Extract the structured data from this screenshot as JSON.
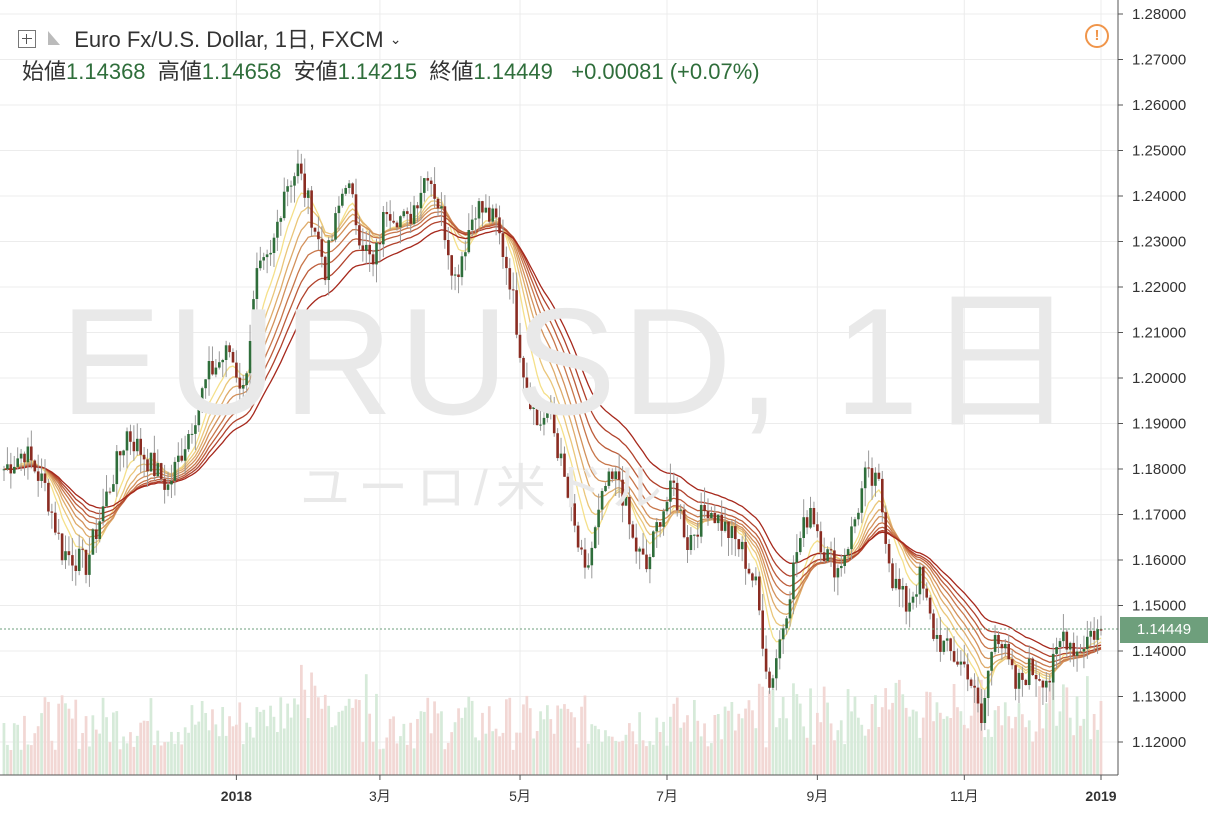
{
  "header": {
    "symbol_name": "Euro Fx/U.S. Dollar",
    "interval": "1日",
    "exchange": "FXCM",
    "open_label": "始値",
    "open": "1.14368",
    "high_label": "高値",
    "high": "1.14658",
    "low_label": "安値",
    "low": "1.14215",
    "close_label": "終値",
    "close": "1.14449",
    "change": "+0.00081",
    "change_pct": "(+0.07%)"
  },
  "watermark": {
    "symbol": "EURUSD, 1日",
    "name": "ユーロ/米ドル"
  },
  "last_price": "1.14449",
  "colors": {
    "up": "#2f6e3b",
    "down": "#8a2c22",
    "wick": "#999999",
    "ribbon_fast": "#f5e08a",
    "ribbon_slow": "#a6281c",
    "price_tag": "#6e9f7c"
  },
  "chart_data": {
    "type": "candlestick",
    "y_ticks": [
      "1.28000",
      "1.27000",
      "1.26000",
      "1.25000",
      "1.24000",
      "1.23000",
      "1.22000",
      "1.21000",
      "1.20000",
      "1.19000",
      "1.18000",
      "1.17000",
      "1.16000",
      "1.15000",
      "1.14000",
      "1.13000",
      "1.12000"
    ],
    "ylim": [
      1.1165,
      1.281
    ],
    "x_ticks": [
      "2018",
      "3月",
      "5月",
      "7月",
      "9月",
      "11月",
      "2019"
    ],
    "x_tick_positions": [
      68,
      110,
      151,
      194,
      238,
      281,
      321
    ],
    "days": 321,
    "price_path": [
      [
        0,
        1.18
      ],
      [
        6,
        1.184
      ],
      [
        12,
        1.176
      ],
      [
        17,
        1.162
      ],
      [
        24,
        1.159
      ],
      [
        30,
        1.174
      ],
      [
        36,
        1.188
      ],
      [
        42,
        1.182
      ],
      [
        48,
        1.176
      ],
      [
        54,
        1.188
      ],
      [
        60,
        1.201
      ],
      [
        66,
        1.206
      ],
      [
        70,
        1.197
      ],
      [
        74,
        1.222
      ],
      [
        78,
        1.226
      ],
      [
        82,
        1.242
      ],
      [
        86,
        1.246
      ],
      [
        90,
        1.236
      ],
      [
        94,
        1.224
      ],
      [
        100,
        1.244
      ],
      [
        104,
        1.232
      ],
      [
        108,
        1.224
      ],
      [
        112,
        1.238
      ],
      [
        118,
        1.234
      ],
      [
        124,
        1.246
      ],
      [
        128,
        1.236
      ],
      [
        132,
        1.222
      ],
      [
        138,
        1.238
      ],
      [
        144,
        1.234
      ],
      [
        148,
        1.222
      ],
      [
        152,
        1.202
      ],
      [
        156,
        1.19
      ],
      [
        160,
        1.192
      ],
      [
        166,
        1.17
      ],
      [
        170,
        1.156
      ],
      [
        176,
        1.176
      ],
      [
        180,
        1.178
      ],
      [
        184,
        1.164
      ],
      [
        188,
        1.158
      ],
      [
        192,
        1.17
      ],
      [
        196,
        1.176
      ],
      [
        200,
        1.164
      ],
      [
        206,
        1.172
      ],
      [
        212,
        1.166
      ],
      [
        216,
        1.162
      ],
      [
        220,
        1.154
      ],
      [
        224,
        1.132
      ],
      [
        228,
        1.146
      ],
      [
        232,
        1.162
      ],
      [
        236,
        1.172
      ],
      [
        240,
        1.162
      ],
      [
        244,
        1.158
      ],
      [
        248,
        1.166
      ],
      [
        252,
        1.178
      ],
      [
        256,
        1.176
      ],
      [
        260,
        1.156
      ],
      [
        264,
        1.15
      ],
      [
        268,
        1.156
      ],
      [
        272,
        1.144
      ],
      [
        276,
        1.14
      ],
      [
        282,
        1.136
      ],
      [
        286,
        1.124
      ],
      [
        290,
        1.146
      ],
      [
        296,
        1.132
      ],
      [
        300,
        1.136
      ],
      [
        306,
        1.134
      ],
      [
        310,
        1.144
      ],
      [
        314,
        1.14
      ],
      [
        318,
        1.144
      ],
      [
        321,
        1.14449
      ]
    ],
    "moving_averages": [
      8,
      12,
      16,
      20,
      25,
      30,
      36,
      44
    ]
  }
}
